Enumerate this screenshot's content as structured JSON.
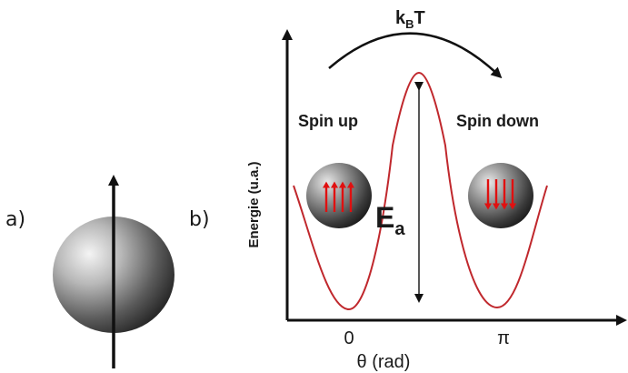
{
  "panel_a": {
    "label": "a)"
  },
  "panel_b": {
    "label": "b)",
    "thermal_energy": {
      "main": "k",
      "sub": "B",
      "tail": "T"
    },
    "spin_up_label": "Spin up",
    "spin_down_label": "Spin down",
    "barrier_label": {
      "main": "E",
      "sub": "a"
    },
    "y_axis_label": "Energie (u.a.)",
    "x_axis_label": "θ (rad)",
    "x_ticks": [
      "0",
      "π"
    ]
  },
  "colors": {
    "curve": "#c0282d",
    "spin_arrow": "#e01010",
    "axis": "#111111"
  }
}
